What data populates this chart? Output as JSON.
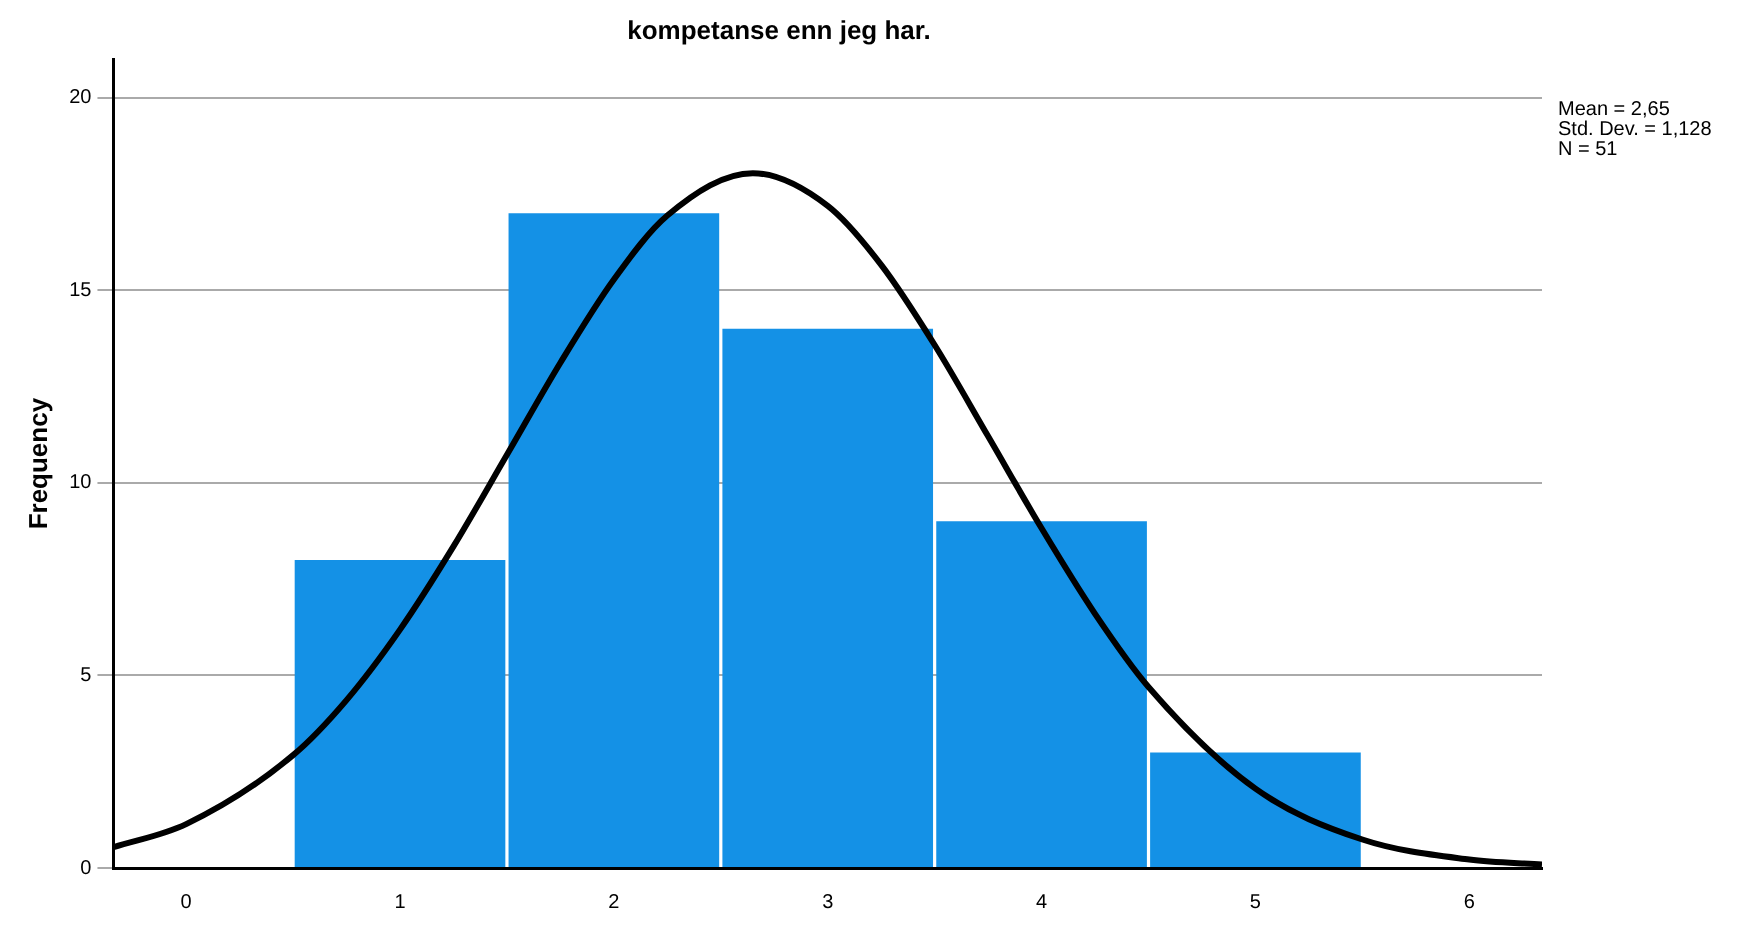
{
  "chart_data": {
    "type": "histogram",
    "title": "kompetanse enn jeg har.",
    "ylabel": "Frequency",
    "bins": [
      0.5,
      1.5,
      2.5,
      3.5,
      4.5,
      5.5
    ],
    "values": [
      8,
      17,
      14,
      9,
      3
    ],
    "color": "#1491e6",
    "series": [
      {
        "type": "line",
        "color": "#000000",
        "x": [
          -0.34,
          0,
          0.5,
          0.75,
          1,
          1.25,
          1.5,
          1.75,
          2,
          2.25,
          2.65,
          3,
          3.25,
          3.5,
          3.75,
          4,
          4.25,
          4.5,
          5,
          5.5,
          6,
          6.34
        ],
        "values": [
          0.54,
          1.14,
          2.93,
          4.36,
          6.19,
          8.35,
          10.73,
          13.12,
          15.28,
          16.94,
          18.04,
          17.19,
          15.66,
          13.58,
          11.21,
          8.82,
          6.6,
          4.7,
          2.06,
          0.74,
          0.22,
          0.09
        ]
      }
    ],
    "xlim": [
      -0.34,
      6.34
    ],
    "xticks": [
      0,
      1,
      2,
      3,
      4,
      5,
      6
    ],
    "ylim": [
      0,
      21
    ],
    "yticks": [
      0,
      5,
      10,
      15,
      20
    ],
    "grid": "y",
    "legend": false,
    "annotations": [
      "Mean = 2,65",
      "Std. Dev. = 1,128",
      "N = 51"
    ]
  }
}
